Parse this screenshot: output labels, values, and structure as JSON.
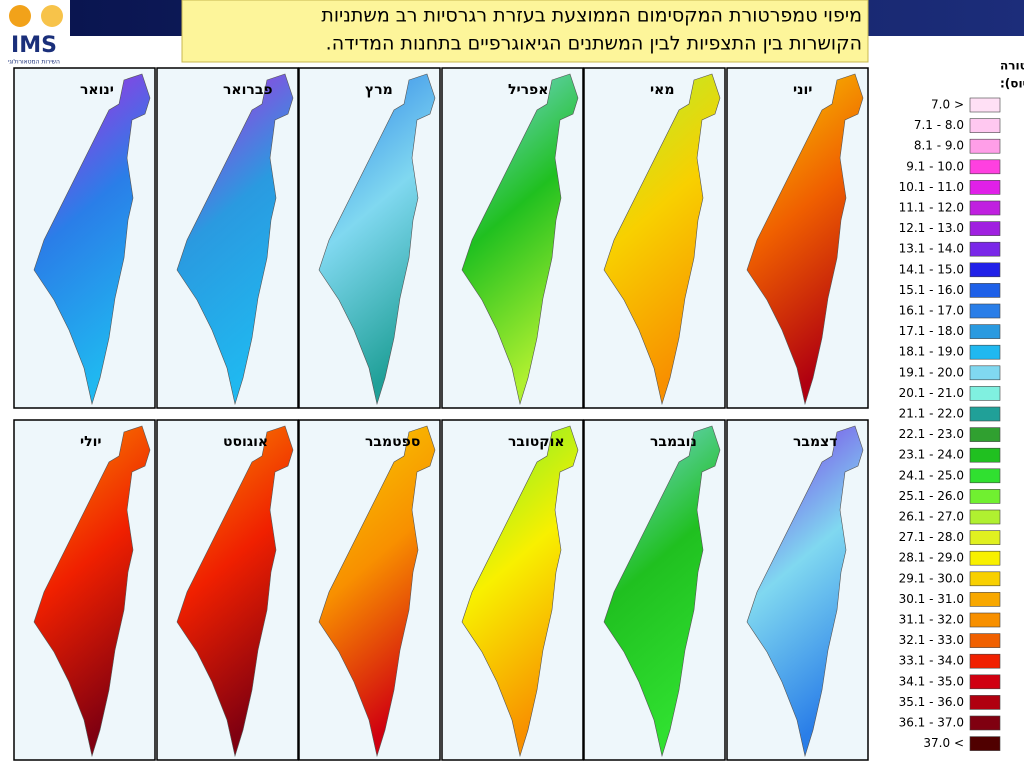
{
  "header": {
    "title_lines": [
      "מיפוי טמפרטורת המקסימום הממוצעת בעזרת רגרסיות רב משתניות",
      "הקושרות בין התצפיות לבין המשתנים הגיאוגרפיים בתחנות המדידה."
    ]
  },
  "logo": {
    "name": "IMS",
    "subtitle": "השירות המטאורולוגי"
  },
  "legend": {
    "title_lines": [
      "טמפרטורה",
      "(מעלות צלזיוס):"
    ],
    "items": [
      {
        "label": "7.0 >",
        "color": "#ffe0f5"
      },
      {
        "label": "7.1 - 8.0",
        "color": "#ffc8f0"
      },
      {
        "label": "8.1 - 9.0",
        "color": "#ff9ee8"
      },
      {
        "label": "9.1 - 10.0",
        "color": "#ff40e0"
      },
      {
        "label": "10.1 - 11.0",
        "color": "#e020e8"
      },
      {
        "label": "11.1 - 12.0",
        "color": "#c020e0"
      },
      {
        "label": "12.1 - 13.0",
        "color": "#a020e0"
      },
      {
        "label": "13.1 - 14.0",
        "color": "#7a28e8"
      },
      {
        "label": "14.1 - 15.0",
        "color": "#2020e8"
      },
      {
        "label": "15.1 - 16.0",
        "color": "#1e60e8"
      },
      {
        "label": "16.1 - 17.0",
        "color": "#2a7ee8"
      },
      {
        "label": "17.1 - 18.0",
        "color": "#2a9ae0"
      },
      {
        "label": "18.1 - 19.0",
        "color": "#20b8f0"
      },
      {
        "label": "19.1 - 20.0",
        "color": "#80d8f0"
      },
      {
        "label": "20.1 - 21.0",
        "color": "#80f0e0"
      },
      {
        "label": "21.1 - 22.0",
        "color": "#20a098"
      },
      {
        "label": "22.1 - 23.0",
        "color": "#30a030"
      },
      {
        "label": "23.1 - 24.0",
        "color": "#20c020"
      },
      {
        "label": "24.1 - 25.0",
        "color": "#30e030"
      },
      {
        "label": "25.1 - 26.0",
        "color": "#70f030"
      },
      {
        "label": "26.1 - 27.0",
        "color": "#b0f030"
      },
      {
        "label": "27.1 - 28.0",
        "color": "#e0f020"
      },
      {
        "label": "28.1 - 29.0",
        "color": "#f8f000"
      },
      {
        "label": "29.1 - 30.0",
        "color": "#f8d000"
      },
      {
        "label": "30.1 - 31.0",
        "color": "#f8a800"
      },
      {
        "label": "31.1 - 32.0",
        "color": "#f89000"
      },
      {
        "label": "32.1 - 33.0",
        "color": "#f06000"
      },
      {
        "label": "33.1 - 34.0",
        "color": "#f02000"
      },
      {
        "label": "34.1 - 35.0",
        "color": "#d00010"
      },
      {
        "label": "35.1 - 36.0",
        "color": "#b00010"
      },
      {
        "label": "36.1 - 37.0",
        "color": "#800010"
      },
      {
        "label": "37.0 <",
        "color": "#500000"
      }
    ]
  },
  "panels": [
    {
      "month": "ינואר",
      "colors": [
        "#c020e0",
        "#2a7ee8",
        "#20b8f0"
      ]
    },
    {
      "month": "פברואר",
      "colors": [
        "#c020e0",
        "#2a9ae0",
        "#20b8f0"
      ]
    },
    {
      "month": "מרץ",
      "colors": [
        "#2a7ee8",
        "#80d8f0",
        "#20a098"
      ]
    },
    {
      "month": "אפריל",
      "colors": [
        "#80d8f0",
        "#20c020",
        "#b0f030"
      ]
    },
    {
      "month": "מאי",
      "colors": [
        "#b0f030",
        "#f8d000",
        "#f89000"
      ]
    },
    {
      "month": "יוני",
      "colors": [
        "#f8d000",
        "#f06000",
        "#b00010"
      ]
    },
    {
      "month": "יולי",
      "colors": [
        "#f89000",
        "#f02000",
        "#800010"
      ]
    },
    {
      "month": "אוגוסט",
      "colors": [
        "#f89000",
        "#f02000",
        "#800010"
      ]
    },
    {
      "month": "ספטמבר",
      "colors": [
        "#f8d000",
        "#f89000",
        "#d00010"
      ]
    },
    {
      "month": "אוקטובר",
      "colors": [
        "#70f030",
        "#f8f000",
        "#f89000"
      ]
    },
    {
      "month": "נובמבר",
      "colors": [
        "#80d8f0",
        "#20c020",
        "#30e030"
      ]
    },
    {
      "month": "דצמבר",
      "colors": [
        "#7a28e8",
        "#80d8f0",
        "#2a7ee8"
      ]
    }
  ]
}
